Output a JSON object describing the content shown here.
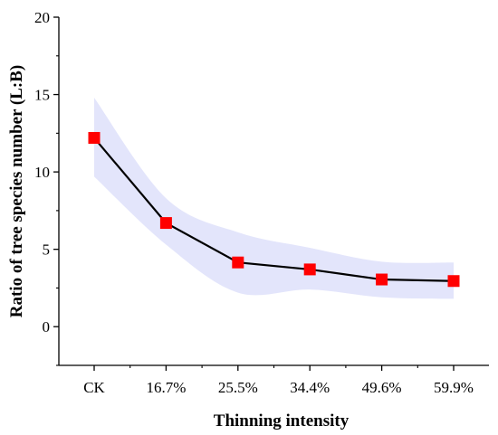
{
  "chart_data": {
    "type": "line",
    "xlabel": "Thinning intensity",
    "ylabel": "Ratio of tree species number (L:B)",
    "categories": [
      "CK",
      "16.7%",
      "25.5%",
      "34.4%",
      "49.6%",
      "59.9%"
    ],
    "series": [
      {
        "values": [
          12.2,
          6.7,
          4.15,
          3.7,
          3.05,
          2.95
        ],
        "band_upper": [
          14.8,
          8.3,
          6.1,
          5.1,
          4.2,
          4.15
        ],
        "band_lower": [
          9.7,
          5.3,
          2.2,
          2.4,
          1.9,
          1.8
        ]
      }
    ],
    "ylim": [
      -2.5,
      20
    ],
    "yticks": [
      0,
      5,
      10,
      15,
      20
    ],
    "grid": false,
    "legend": "none",
    "colors": {
      "line": "#000000",
      "marker": "#ff0000",
      "band": "#e3e5fb",
      "axis": "#000000"
    }
  }
}
